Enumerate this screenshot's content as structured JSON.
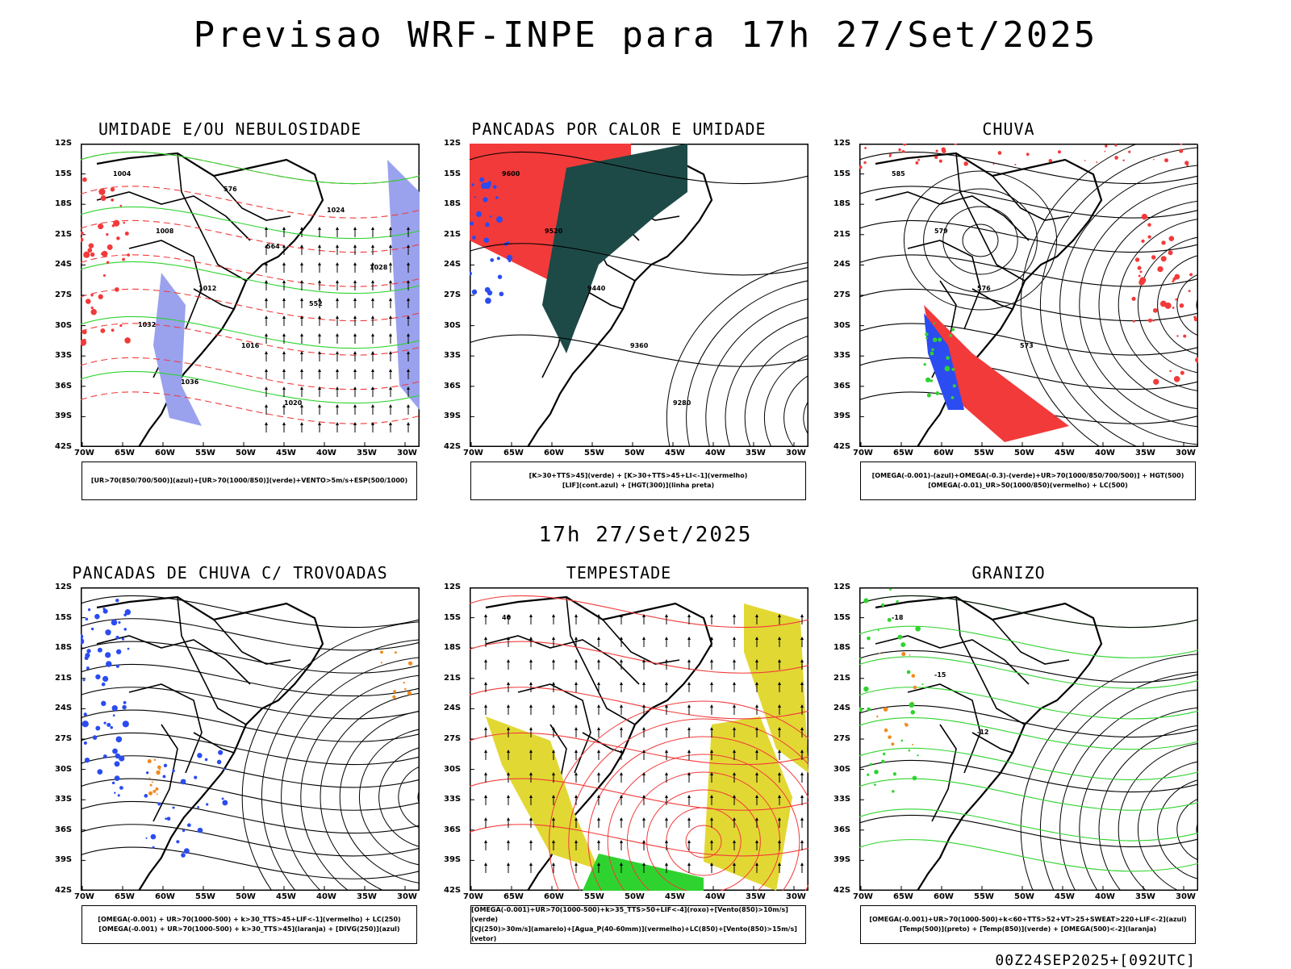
{
  "header": {
    "title": "Previsao WRF-INPE  para 17h 27/Set/2025"
  },
  "middle_title": "17h 27/Set/2025",
  "footer": "00Z24SEP2025+[092UTC]",
  "axes": {
    "lat_labels": [
      "12S",
      "15S",
      "18S",
      "21S",
      "24S",
      "27S",
      "30S",
      "33S",
      "36S",
      "39S",
      "42S"
    ],
    "lon_labels": [
      "70W",
      "65W",
      "60W",
      "55W",
      "50W",
      "45W",
      "40W",
      "35W",
      "30W"
    ]
  },
  "colors": {
    "red": "#f23a3a",
    "green": "#2fd32f",
    "blue": "#2b4cf0",
    "darkgreen": "#1d4a47",
    "yellow": "#e2d834",
    "orange": "#f28a1e",
    "lavender": "#9aa2ee"
  },
  "panels": [
    {
      "id": "umidade",
      "title": "UMIDADE E/OU NEBULOSIDADE",
      "legend": [
        "[UR>70(850/700/500)](azul)+[UR>70(1000/850)](verde)+VENTO>5m/s+ESP(500/1000)"
      ],
      "labels": [
        "1004",
        "1008",
        "1012",
        "1016",
        "1020",
        "1024",
        "1028",
        "1032",
        "1036",
        "576",
        "564",
        "552"
      ]
    },
    {
      "id": "pancadas_calor",
      "title": "PANCADAS POR CALOR E UMIDADE",
      "legend": [
        "[K>30+TTS>45](verde) + [K>30+TTS>45+LI<-1](vermelho)",
        "[LIF](cont.azul) + [HGT(300)](linha preta)"
      ],
      "labels": [
        "9600",
        "9520",
        "9440",
        "9360",
        "9280"
      ]
    },
    {
      "id": "chuva",
      "title": "CHUVA",
      "legend": [
        "[OMEGA(-0.001)-(azul)+OMEGA(-0.3)-(verde)+UR>70(1000/850/700/500)] + HGT(500)",
        "[OMEGA(-0.01)_UR>50(1000/850)(vermelho) + LC(500)"
      ],
      "labels": [
        "585",
        "579",
        "576",
        "573"
      ]
    },
    {
      "id": "trovoadas",
      "title": "PANCADAS DE CHUVA C/ TROVOADAS",
      "legend": [
        "[OMEGA(-0.001) + UR>70(1000-500) + k>30_TTS>45+LIF<-1](vermelho) + LC(250)",
        "[OMEGA(-0.001) + UR>70(1000-500) + k>30_TTS>45](laranja) + [DIVG(250)](azul)"
      ],
      "labels": []
    },
    {
      "id": "tempestade",
      "title": "TEMPESTADE",
      "legend": [
        "[OMEGA(-0.001)+UR>70(1000-500)+k>35_TTS>50+LIF<-4](roxo)+[Vento(850)>10m/s](verde)",
        "[CJ(250)>30m/s](amarelo)+[Agua_P(40-60mm)](vermelho)+LC(850)+[Vento(850)>15m/s](vetor)"
      ],
      "labels": [
        "40"
      ]
    },
    {
      "id": "granizo",
      "title": "GRANIZO",
      "legend": [
        "[OMEGA(-0.001)+UR>70(1000-500)+k<60+TTS>52+VT>25+SWEAT>220+LIF<-2](azul)",
        "[Temp(500)](preto) + [Temp(850)](verde) + [OMEGA(500)<-2](laranja)"
      ],
      "labels": [
        "-18",
        "-15",
        "-12"
      ]
    }
  ]
}
